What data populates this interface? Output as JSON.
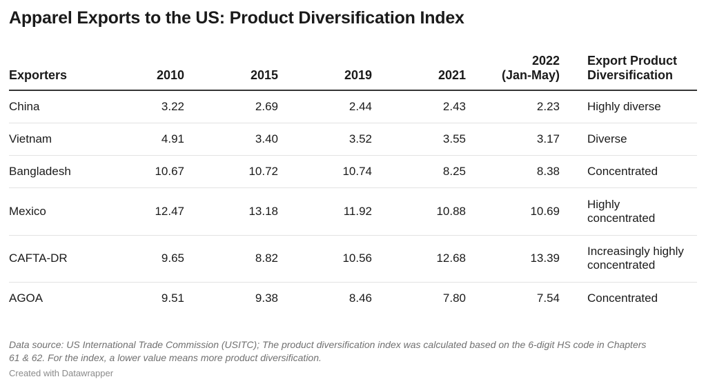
{
  "chart_data": {
    "type": "table",
    "title": "Apparel Exports to the US: Product Diversification Index",
    "columns": [
      "Exporters",
      "2010",
      "2015",
      "2019",
      "2021",
      "2022 (Jan-May)",
      "Export Product Diversification"
    ],
    "header_lines": {
      "exporters": "Exporters",
      "y2010": "2010",
      "y2015": "2015",
      "y2019": "2019",
      "y2021": "2021",
      "y2022_line1": "2022",
      "y2022_line2": "(Jan-May)",
      "div_line1": "Export Product",
      "div_line2": "Diversification"
    },
    "rows": [
      {
        "exporter": "China",
        "v2010": "3.22",
        "v2015": "2.69",
        "v2019": "2.44",
        "v2021": "2.43",
        "v2022": "2.23",
        "div": "Highly diverse",
        "div_line2": ""
      },
      {
        "exporter": "Vietnam",
        "v2010": "4.91",
        "v2015": "3.40",
        "v2019": "3.52",
        "v2021": "3.55",
        "v2022": "3.17",
        "div": "Diverse",
        "div_line2": ""
      },
      {
        "exporter": "Bangladesh",
        "v2010": "10.67",
        "v2015": "10.72",
        "v2019": "10.74",
        "v2021": "8.25",
        "v2022": "8.38",
        "div": "Concentrated",
        "div_line2": ""
      },
      {
        "exporter": "Mexico",
        "v2010": "12.47",
        "v2015": "13.18",
        "v2019": "11.92",
        "v2021": "10.88",
        "v2022": "10.69",
        "div": "Highly",
        "div_line2": "concentrated"
      },
      {
        "exporter": "CAFTA-DR",
        "v2010": "9.65",
        "v2015": "8.82",
        "v2019": "10.56",
        "v2021": "12.68",
        "v2022": "13.39",
        "div": "Increasingly highly",
        "div_line2": "concentrated"
      },
      {
        "exporter": "AGOA",
        "v2010": "9.51",
        "v2015": "9.38",
        "v2019": "8.46",
        "v2021": "7.80",
        "v2022": "7.54",
        "div": "Concentrated",
        "div_line2": ""
      }
    ],
    "note_line1": "Data source: US International Trade Commission (USITC); The product diversification index was calculated based on the 6-digit HS code in Chapters",
    "note_line2": "61 & 62. For the index, a lower value means more product diversification.",
    "credit": "Created with Datawrapper"
  }
}
